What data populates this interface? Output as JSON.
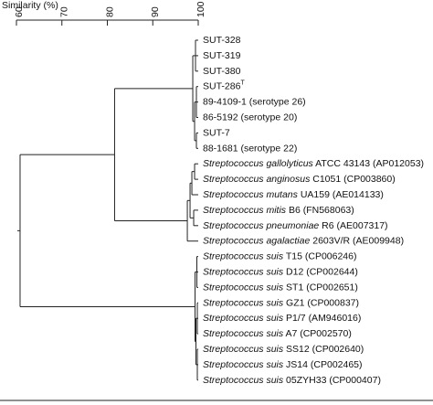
{
  "chart_data": {
    "type": "dendrogram",
    "x_label": "Similarity (%)",
    "xlim": [
      60,
      100
    ],
    "xticks": [
      60,
      70,
      80,
      90,
      100
    ],
    "tree": {
      "similarity": 60.8,
      "children": [
        {
          "similarity": 81.6,
          "children": [
            {
              "similarity": 98.8,
              "children": [
                {
                  "similarity": 99.4,
                  "children": [
                    {
                      "text": "SUT-328"
                    },
                    {
                      "text": "SUT-319"
                    },
                    {
                      "text": "SUT-380"
                    }
                  ]
                },
                {
                  "similarity": 99.2,
                  "children": [
                    {
                      "similarity": 99.6,
                      "children": [
                        {
                          "text": "SUT-286",
                          "sup": "T"
                        },
                        {
                          "text": "89-4109-1 (serotype 26)"
                        },
                        {
                          "text": "86-5192 (serotype 20)"
                        }
                      ]
                    },
                    {
                      "similarity": 99.6,
                      "children": [
                        {
                          "text": "SUT-7"
                        },
                        {
                          "text": "88-1681 (serotype 22)"
                        }
                      ]
                    }
                  ]
                }
              ]
            },
            {
              "similarity": 97.6,
              "children": [
                {
                  "similarity": 98.2,
                  "children": [
                    {
                      "similarity": 98.6,
                      "children": [
                        {
                          "similarity": 99.2,
                          "children": [
                            {
                              "italic": "Streptococcus gallolyticus",
                              "text": "ATCC 43143 (AP012053)"
                            },
                            {
                              "italic": "Streptococcus anginosus",
                              "text": "C1051 (CP003860)"
                            }
                          ]
                        },
                        {
                          "italic": "Streptococcus mutans",
                          "text": "UA159 (AE014133)"
                        }
                      ]
                    },
                    {
                      "similarity": 99.0,
                      "children": [
                        {
                          "italic": "Streptococcus mitis",
                          "text": "B6 (FN568063)"
                        },
                        {
                          "italic": "Streptococcus pneumoniae",
                          "text": "R6 (AE007317)"
                        }
                      ]
                    }
                  ]
                },
                {
                  "italic": "Streptococcus agalactiae",
                  "text": "2603V/R (AE009948)"
                }
              ]
            }
          ]
        },
        {
          "similarity": 99.3,
          "children": [
            {
              "similarity": 99.7,
              "children": [
                {
                  "italic": "Streptococcus suis",
                  "text": "T15 (CP006246)"
                },
                {
                  "italic": "Streptococcus suis",
                  "text": "D12 (CP002644)"
                },
                {
                  "italic": "Streptococcus suis",
                  "text": "ST1 (CP002651)"
                }
              ]
            },
            {
              "similarity": 99.5,
              "children": [
                {
                  "similarity": 99.8,
                  "children": [
                    {
                      "italic": "Streptococcus suis",
                      "text": "GZ1 (CP000837)"
                    },
                    {
                      "italic": "Streptococcus suis",
                      "text": "P1/7 (AM946016)"
                    },
                    {
                      "italic": "Streptococcus suis",
                      "text": "A7 (CP002570)"
                    }
                  ]
                },
                {
                  "similarity": 99.8,
                  "children": [
                    {
                      "italic": "Streptococcus suis",
                      "text": "SS12 (CP002640)"
                    },
                    {
                      "italic": "Streptococcus suis",
                      "text": "JS14 (CP002465)"
                    },
                    {
                      "italic": "Streptococcus suis",
                      "text": "05ZYH33 (CP000407)"
                    }
                  ]
                }
              ]
            }
          ]
        }
      ]
    }
  }
}
